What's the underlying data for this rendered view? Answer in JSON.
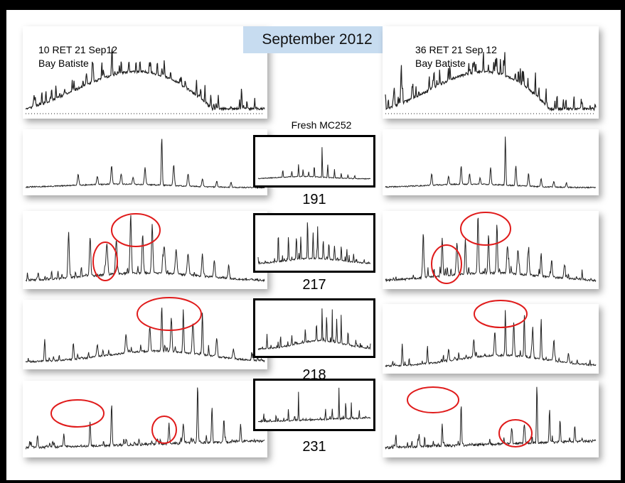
{
  "title": "September 2012",
  "fresh_label": "Fresh MC252",
  "panel_labels": {
    "left": [
      "10 RET 21  Sep12",
      "Bay Batiste"
    ],
    "right": [
      "36 RET 21 Sep 12",
      "Bay Batiste"
    ]
  },
  "row_labels": [
    "191",
    "217",
    "218",
    "231"
  ],
  "colors": {
    "trace": "#222222",
    "circle": "#e01b1b",
    "title_bg": "#c7dcf0",
    "frame": "#000000"
  },
  "chart_data": [
    {
      "type": "line",
      "title": "",
      "series": [
        {
          "name": "10 RET 21  Sep12 Bay Batiste",
          "profile": "hump"
        }
      ]
    },
    {
      "type": "line",
      "title": "",
      "series": [
        {
          "name": "36 RET 21 Sep 12 Bay Batiste",
          "profile": "hump"
        }
      ]
    },
    {
      "type": "line",
      "title": "191",
      "series": [
        {
          "profile": "ion191"
        }
      ]
    },
    {
      "type": "line",
      "title": "217",
      "series": [
        {
          "profile": "ion217"
        }
      ]
    },
    {
      "type": "line",
      "title": "218",
      "series": [
        {
          "profile": "ion218"
        }
      ]
    },
    {
      "type": "line",
      "title": "231",
      "series": [
        {
          "profile": "ion231"
        }
      ]
    }
  ]
}
